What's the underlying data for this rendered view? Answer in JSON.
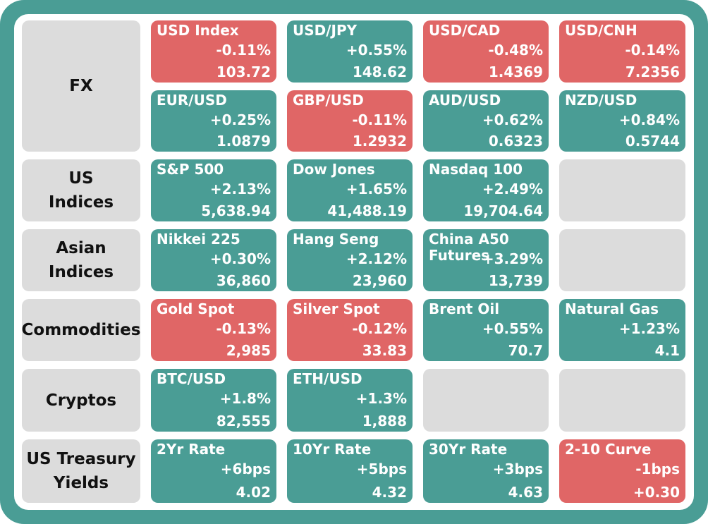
{
  "colors": {
    "frame": "#4a9d95",
    "up": "#4a9d95",
    "down": "#e06666",
    "label_bg": "#dcdcdc"
  },
  "rows": [
    {
      "label": "FX",
      "tiles": [
        {
          "name": "USD Index",
          "change": "-0.11%",
          "value": "103.72",
          "dir": "down"
        },
        {
          "name": "USD/JPY",
          "change": "+0.55%",
          "value": "148.62",
          "dir": "up"
        },
        {
          "name": "USD/CAD",
          "change": "-0.48%",
          "value": "1.4369",
          "dir": "down"
        },
        {
          "name": "USD/CNH",
          "change": "-0.14%",
          "value": "7.2356",
          "dir": "down"
        }
      ]
    },
    {
      "label": "",
      "tiles": [
        {
          "name": "EUR/USD",
          "change": "+0.25%",
          "value": "1.0879",
          "dir": "up"
        },
        {
          "name": "GBP/USD",
          "change": "-0.11%",
          "value": "1.2932",
          "dir": "down"
        },
        {
          "name": "AUD/USD",
          "change": "+0.62%",
          "value": "0.6323",
          "dir": "up"
        },
        {
          "name": "NZD/USD",
          "change": "+0.84%",
          "value": "0.5744",
          "dir": "up"
        }
      ]
    },
    {
      "label": "US\nIndices",
      "tiles": [
        {
          "name": "S&P 500",
          "change": "+2.13%",
          "value": "5,638.94",
          "dir": "up"
        },
        {
          "name": "Dow Jones",
          "change": "+1.65%",
          "value": "41,488.19",
          "dir": "up"
        },
        {
          "name": "Nasdaq 100",
          "change": "+2.49%",
          "value": "19,704.64",
          "dir": "up"
        },
        null
      ]
    },
    {
      "label": "Asian\nIndices",
      "tiles": [
        {
          "name": "Nikkei 225",
          "change": "+0.30%",
          "value": "36,860",
          "dir": "up"
        },
        {
          "name": "Hang Seng",
          "change": "+2.12%",
          "value": "23,960",
          "dir": "up"
        },
        {
          "name": "China A50\nFutures",
          "change": "+3.29%",
          "value": "13,739",
          "dir": "up"
        },
        null
      ]
    },
    {
      "label": "Commodities",
      "tiles": [
        {
          "name": "Gold Spot",
          "change": "-0.13%",
          "value": "2,985",
          "dir": "down"
        },
        {
          "name": "Silver Spot",
          "change": "-0.12%",
          "value": "33.83",
          "dir": "down"
        },
        {
          "name": "Brent Oil",
          "change": "+0.55%",
          "value": "70.7",
          "dir": "up"
        },
        {
          "name": "Natural Gas",
          "change": "+1.23%",
          "value": "4.1",
          "dir": "up"
        }
      ]
    },
    {
      "label": "Cryptos",
      "tiles": [
        {
          "name": "BTC/USD",
          "change": "+1.8%",
          "value": "82,555",
          "dir": "up"
        },
        {
          "name": "ETH/USD",
          "change": "+1.3%",
          "value": "1,888",
          "dir": "up"
        },
        null,
        null
      ]
    },
    {
      "label": "US Treasury\nYields",
      "tiles": [
        {
          "name": "2Yr Rate",
          "change": "+6bps",
          "value": "4.02",
          "dir": "up"
        },
        {
          "name": "10Yr Rate",
          "change": "+5bps",
          "value": "4.32",
          "dir": "up"
        },
        {
          "name": "30Yr Rate",
          "change": "+3bps",
          "value": "4.63",
          "dir": "up"
        },
        {
          "name": "2-10 Curve",
          "change": "-1bps",
          "value": "+0.30",
          "dir": "down"
        }
      ]
    }
  ]
}
